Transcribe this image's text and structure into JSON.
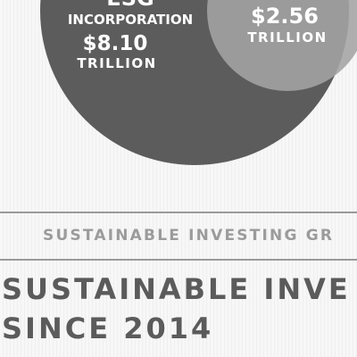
{
  "chart_data": {
    "type": "bubble",
    "series": [
      {
        "name_lines": [
          "ESG",
          "INCORPORATION"
        ],
        "value": 8.1,
        "value_label": "$8.10",
        "unit": "TRILLION",
        "color": "#5c5c5c"
      },
      {
        "name_lines": [],
        "value": 2.56,
        "value_label": "$2.56",
        "unit": "TRILLION",
        "color": "#a4a4a4"
      }
    ]
  },
  "section": {
    "subtitle": "SUSTAINABLE INVESTING GR",
    "headline_line1": "SUSTAINABLE INVE",
    "headline_line2": "SINCE 2014"
  },
  "colors": {
    "rule": "#9a9a9a",
    "subtitle": "#9b9b9b",
    "headline": "#5b5b5b",
    "background": "#f6f6f6"
  }
}
